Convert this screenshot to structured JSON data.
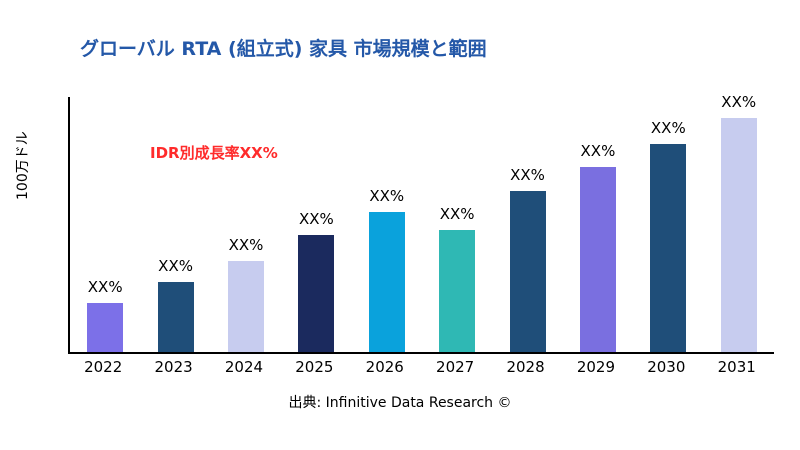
{
  "header": {
    "title": "グローバル RTA (組立式) 家具 市場規模と範囲"
  },
  "annotations": {
    "growth_rate": "IDR別成長率XX%",
    "growth_rate_color": "#FF2B2B"
  },
  "footer": {
    "source": "出典: Infinitive Data Research ©"
  },
  "chart_data": {
    "type": "bar",
    "title": "グローバル RTA (組立式) 家具 市場規模と範囲",
    "xlabel": "",
    "ylabel": "100万ドル",
    "categories": [
      "2022",
      "2023",
      "2024",
      "2025",
      "2026",
      "2027",
      "2028",
      "2029",
      "2030",
      "2031"
    ],
    "values": [
      21,
      30,
      39,
      50,
      60,
      52,
      69,
      79,
      89,
      100
    ],
    "value_unit": "relative-percent-of-max",
    "bar_labels": [
      "XX%",
      "XX%",
      "XX%",
      "XX%",
      "XX%",
      "XX%",
      "XX%",
      "XX%",
      "XX%",
      "XX%"
    ],
    "colors": [
      "#7C70E8",
      "#1F4E79",
      "#C7CCEF",
      "#1B2A5E",
      "#0AA2DC",
      "#2FB8B4",
      "#1F4E79",
      "#7A6FE0",
      "#1F4E79",
      "#C7CCEF"
    ],
    "ylim": [
      0,
      100
    ],
    "grid": false,
    "legend": "none",
    "annotation": "IDR別成長率XX%",
    "title_color": "#2458A8"
  }
}
